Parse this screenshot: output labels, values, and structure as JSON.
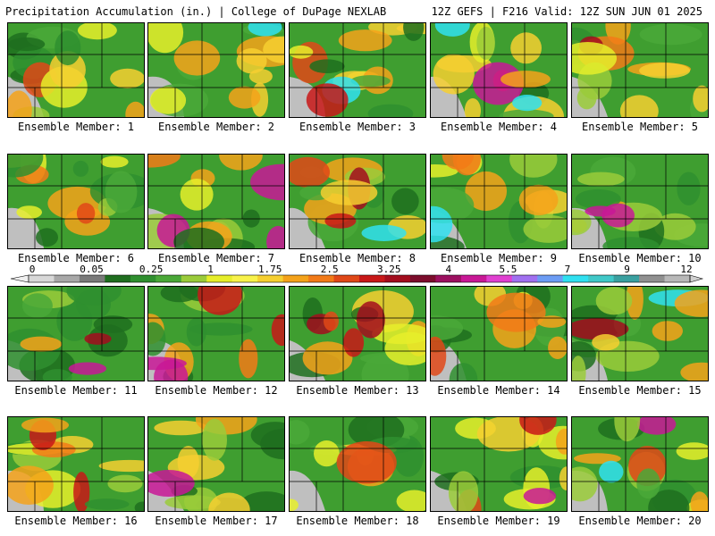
{
  "header": {
    "title_left": "Precipitation Accumulation (in.) | College of DuPage NEXLAB",
    "title_right": "12Z GEFS | F216 Valid: 12Z SUN JUN 01 2025"
  },
  "panels": [
    {
      "label": "Ensemble Member: 1"
    },
    {
      "label": "Ensemble Member: 2"
    },
    {
      "label": "Ensemble Member: 3"
    },
    {
      "label": "Ensemble Member: 4"
    },
    {
      "label": "Ensemble Member: 5"
    },
    {
      "label": "Ensemble Member: 6"
    },
    {
      "label": "Ensemble Member: 7"
    },
    {
      "label": "Ensemble Member: 8"
    },
    {
      "label": "Ensemble Member: 9"
    },
    {
      "label": "Ensemble Member: 10"
    },
    {
      "label": "Ensemble Member: 11"
    },
    {
      "label": "Ensemble Member: 12"
    },
    {
      "label": "Ensemble Member: 13"
    },
    {
      "label": "Ensemble Member: 14"
    },
    {
      "label": "Ensemble Member: 15"
    },
    {
      "label": "Ensemble Member: 16"
    },
    {
      "label": "Ensemble Member: 17"
    },
    {
      "label": "Ensemble Member: 18"
    },
    {
      "label": "Ensemble Member: 19"
    },
    {
      "label": "Ensemble Member: 20"
    }
  ],
  "colorbar": {
    "tick_labels": [
      "0",
      "0.05",
      "0.25",
      "1",
      "1.75",
      "2.5",
      "3.25",
      "4",
      "5.5",
      "7",
      "9",
      "12"
    ],
    "colors": [
      "#d8d8d8",
      "#a8a8a8",
      "#7a7a7a",
      "#1f6e1f",
      "#2f8f2f",
      "#4aa838",
      "#9acb3a",
      "#e6ee2a",
      "#f8f24a",
      "#f6cf30",
      "#f4a21a",
      "#f27a18",
      "#e04818",
      "#c81818",
      "#a30d1d",
      "#7c0d2c",
      "#9c1060",
      "#c81896",
      "#e040d0",
      "#a070f0",
      "#6c9cf4",
      "#30e0f0",
      "#40c8c8",
      "#3aa0a0",
      "#909090",
      "#b8b8b8"
    ]
  }
}
